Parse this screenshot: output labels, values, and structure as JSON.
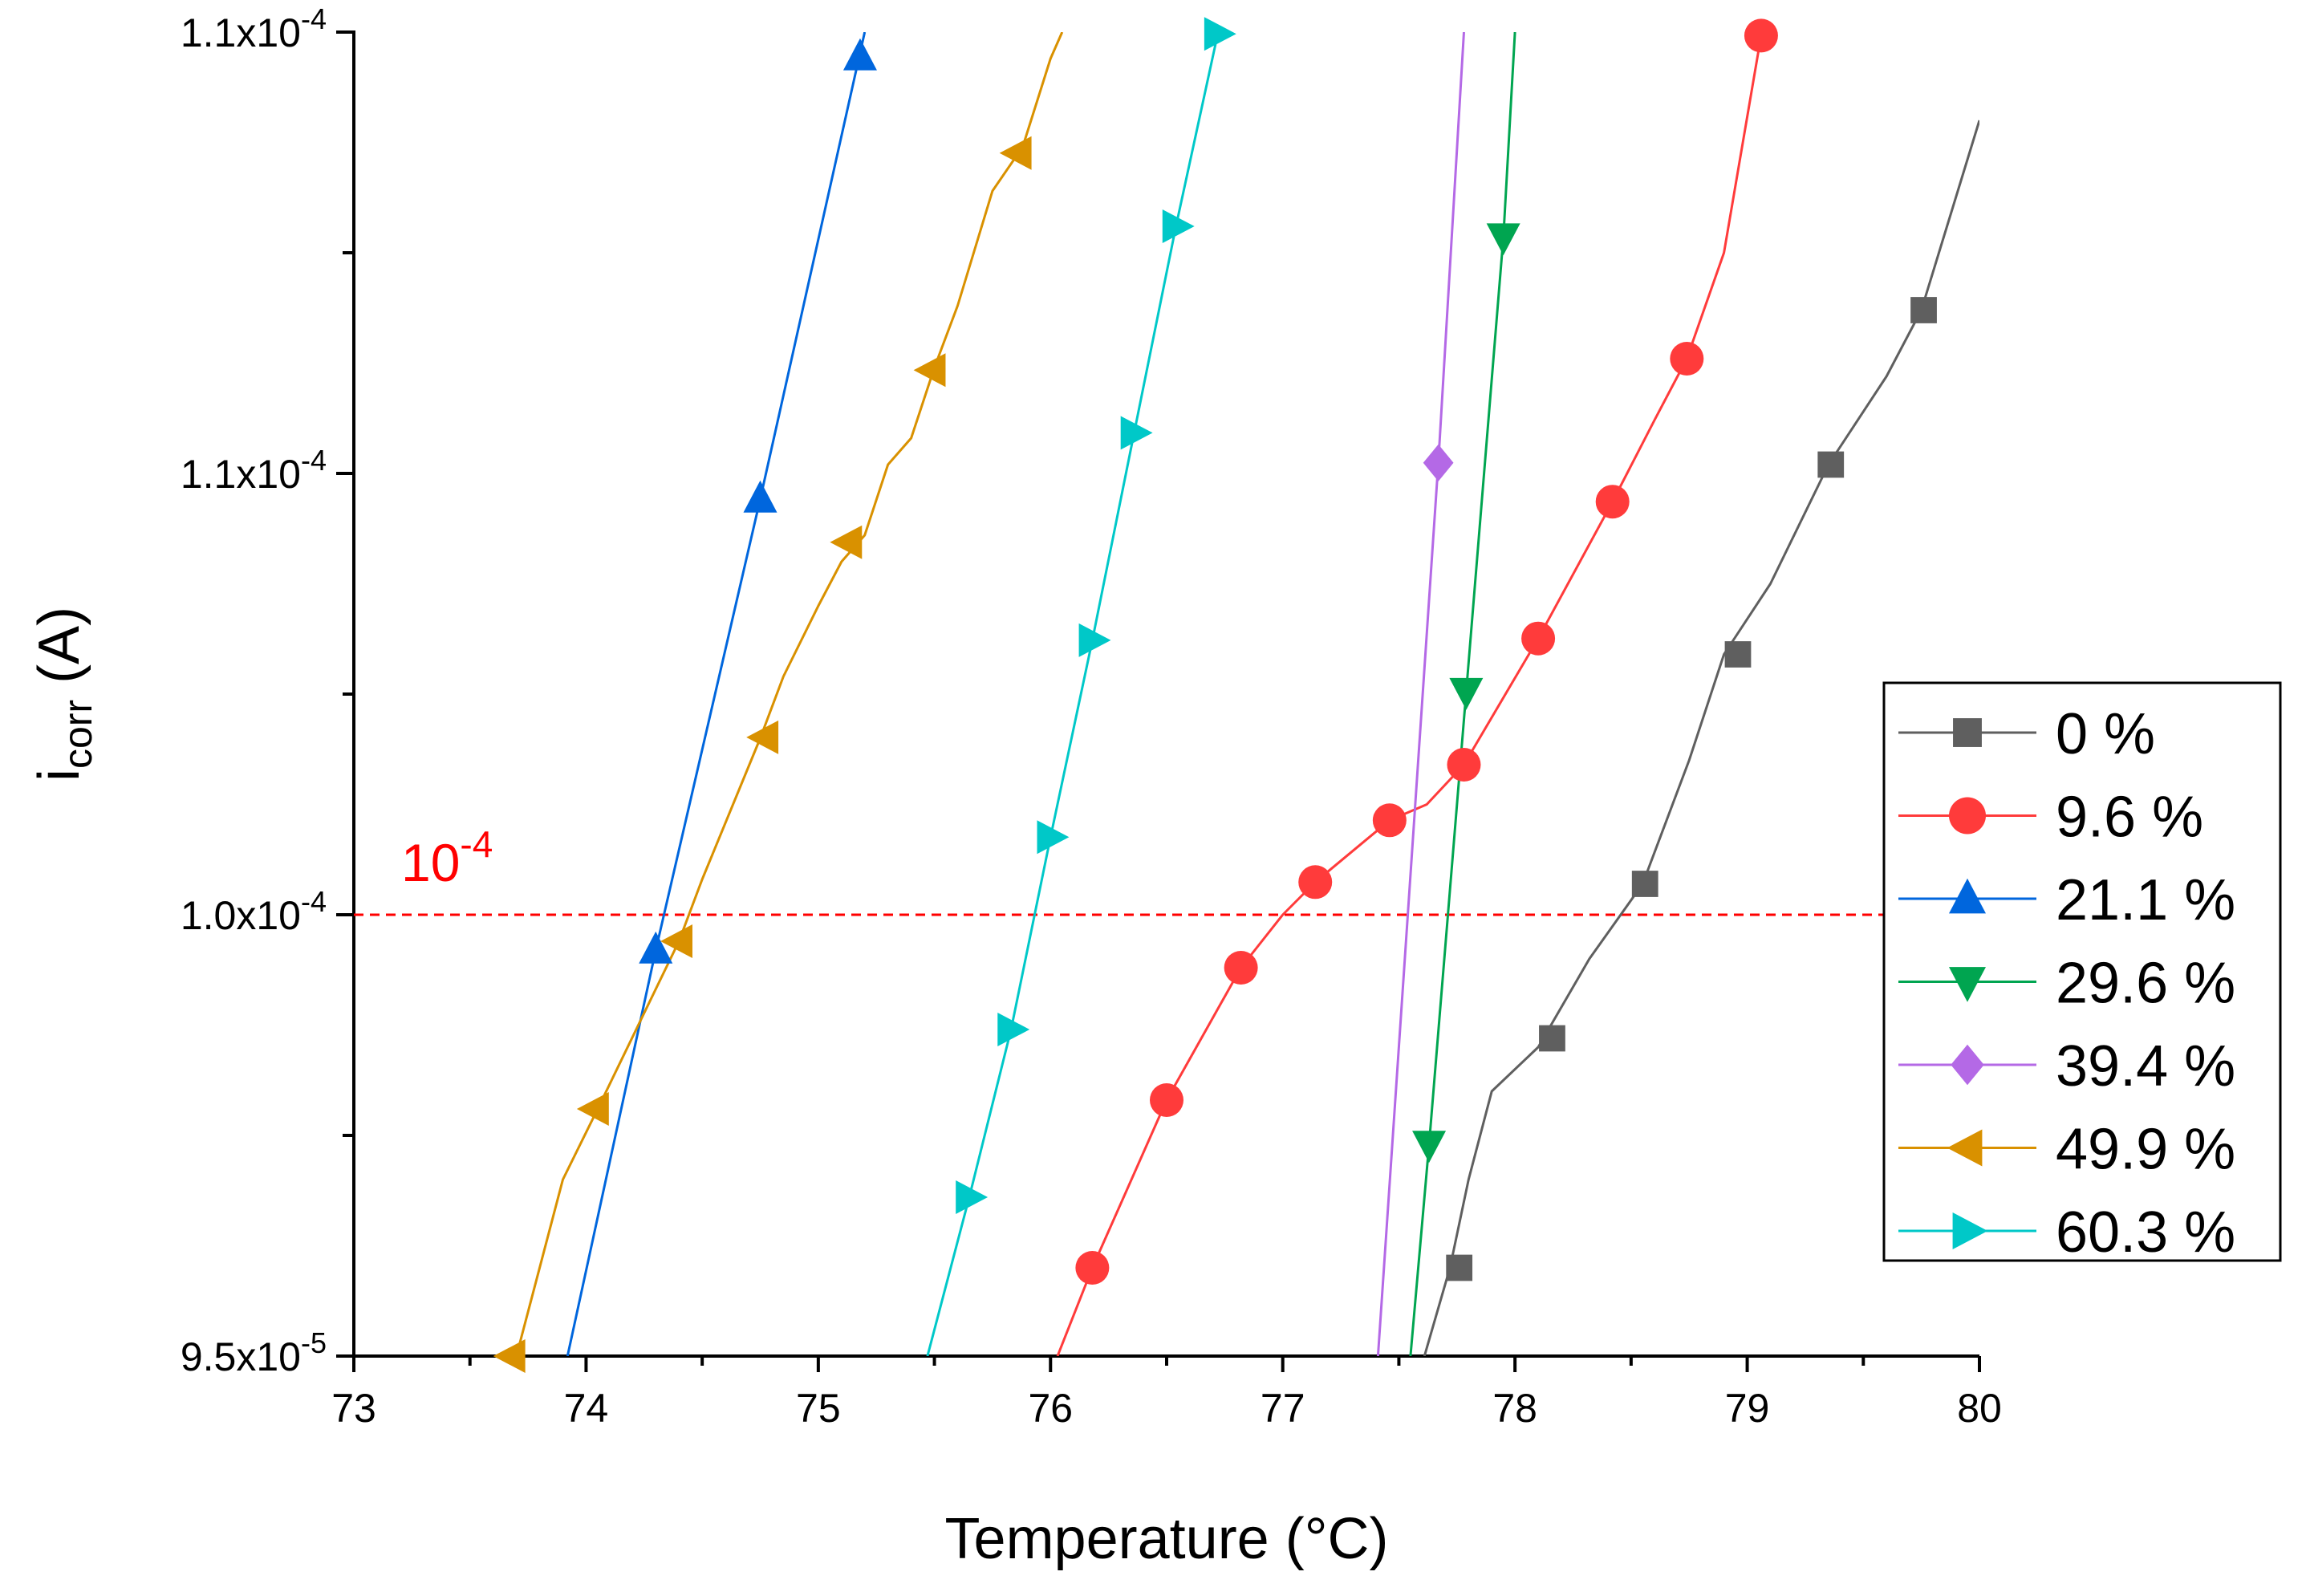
{
  "chart_data": {
    "type": "line",
    "title": "",
    "xlabel": "Temperature (°C)",
    "ylabel_main": "i",
    "ylabel_sub": "corr",
    "ylabel_unit": " (A)",
    "xlim": [
      73,
      80
    ],
    "ylim": [
      9.5e-05,
      0.00011
    ],
    "grid": false,
    "legend_position": "right",
    "x_ticks": [
      73,
      74,
      75,
      76,
      77,
      78,
      79,
      80
    ],
    "x_tick_labels": [
      "73",
      "74",
      "75",
      "76",
      "77",
      "78",
      "79",
      "80"
    ],
    "y_ticks": [
      {
        "value": 9.5e-05,
        "mantissa": "9.5x10",
        "exponent": "-5"
      },
      {
        "value": 0.0001,
        "mantissa": "1.0x10",
        "exponent": "-4"
      },
      {
        "value": 0.000105,
        "mantissa": "1.1x10",
        "exponent": "-4"
      },
      {
        "value": 0.00011,
        "mantissa": "1.1x10",
        "exponent": "-4"
      }
    ],
    "reference_line": {
      "y": 0.0001,
      "label_base": "10",
      "label_exponent": "-4",
      "color": "#ff0000",
      "style": "dashed"
    },
    "series": [
      {
        "name": "0 %",
        "color": "#5f5f5f",
        "marker": "square",
        "x": [
          77.61,
          77.72,
          77.8,
          77.9,
          78.1,
          78.32,
          78.55,
          78.75,
          78.9,
          79.1,
          79.35,
          79.6,
          79.75,
          80.0
        ],
        "y": [
          9.5e-05,
          9.6e-05,
          9.7e-05,
          9.8e-05,
          9.85e-05,
          9.95e-05,
          0.00010035,
          0.00010175,
          0.00010295,
          0.00010375,
          0.0001051,
          0.0001061,
          0.00010685,
          0.000109
        ],
        "marker_x": [
          77.76,
          78.16,
          78.56,
          78.96,
          79.36,
          79.76
        ],
        "marker_y": [
          9.6e-05,
          9.86e-05,
          0.00010035,
          0.00010295,
          0.0001051,
          0.00010685
        ]
      },
      {
        "name": "9.6 %",
        "color": "#ff3b3b",
        "marker": "circle",
        "x": [
          76.03,
          76.18,
          76.5,
          76.82,
          77.0,
          77.14,
          77.46,
          77.62,
          77.78,
          78.1,
          78.42,
          78.6,
          78.74,
          78.9,
          79.06
        ],
        "y": [
          9.5e-05,
          9.6e-05,
          9.79e-05,
          9.94e-05,
          0.0001,
          0.00010037,
          0.00010107,
          0.00010125,
          0.0001017,
          0.00010313,
          0.00010468,
          0.0001056,
          0.0001063,
          0.0001075,
          0.00010996
        ],
        "marker_x": [
          76.18,
          76.5,
          76.82,
          77.14,
          77.46,
          77.78,
          78.1,
          78.42,
          78.74,
          79.06
        ],
        "marker_y": [
          9.6e-05,
          9.79e-05,
          9.94e-05,
          0.00010037,
          0.00010107,
          0.0001017,
          0.00010313,
          0.00010468,
          0.0001063,
          0.00010996
        ]
      },
      {
        "name": "21.1 %",
        "color": "#0066dd",
        "marker": "triangle-up",
        "x": [
          73.92,
          74.3,
          74.75,
          75.2
        ],
        "y": [
          9.5e-05,
          9.96e-05,
          0.00010471,
          0.00011
        ],
        "marker_x": [
          74.3,
          74.75,
          75.18
        ],
        "marker_y": [
          9.96e-05,
          0.00010471,
          0.00010972
        ]
      },
      {
        "name": "29.6 %",
        "color": "#00a550",
        "marker": "triangle-down",
        "x": [
          77.55,
          77.63,
          77.79,
          77.95,
          78.0
        ],
        "y": [
          9.5e-05,
          9.74e-05,
          0.00010253,
          0.00010768,
          0.00011
        ],
        "marker_x": [
          77.63,
          77.79,
          77.95
        ],
        "marker_y": [
          9.74e-05,
          0.00010253,
          0.00010768
        ]
      },
      {
        "name": "39.4 %",
        "color": "#b469e6",
        "marker": "diamond",
        "x": [
          77.41,
          77.67,
          77.78
        ],
        "y": [
          9.5e-05,
          0.00010512,
          0.00011
        ],
        "marker_x": [
          77.67
        ],
        "marker_y": [
          0.00010512
        ]
      },
      {
        "name": "49.9 %",
        "color": "#d99100",
        "marker": "triangle-left",
        "x": [
          73.65,
          73.7,
          73.9,
          74.05,
          74.4,
          74.5,
          74.75,
          74.85,
          75.0,
          75.1,
          75.2,
          75.3,
          75.4,
          75.5,
          75.6,
          75.75,
          75.88,
          76.0,
          76.05
        ],
        "y": [
          9.5e-05,
          9.5e-05,
          9.7e-05,
          9.78e-05,
          9.97e-05,
          0.0001004,
          0.000102,
          0.0001027,
          0.0001035,
          0.000104,
          0.0001043,
          0.0001051,
          0.0001054,
          0.0001062,
          0.0001069,
          0.0001082,
          0.0001087,
          0.0001097,
          0.00011
        ],
        "marker_x": [
          73.68,
          74.04,
          74.4,
          74.77,
          75.13,
          75.49,
          75.86
        ],
        "marker_y": [
          9.5e-05,
          9.78e-05,
          9.97e-05,
          0.00010201,
          0.00010422,
          0.00010617,
          0.00010863
        ]
      },
      {
        "name": "60.3 %",
        "color": "#00c8c8",
        "marker": "triangle-right",
        "x": [
          75.47,
          75.65,
          75.83,
          76.0,
          76.18,
          76.36,
          76.54,
          76.72,
          76.75
        ],
        "y": [
          9.5e-05,
          9.68e-05,
          9.87e-05,
          0.00010088,
          0.00010311,
          0.00010546,
          0.0001078,
          0.00010998,
          0.00011
        ],
        "marker_x": [
          75.65,
          75.83,
          76.0,
          76.18,
          76.36,
          76.54,
          76.72
        ],
        "marker_y": [
          9.68e-05,
          9.87e-05,
          0.00010088,
          0.00010311,
          0.00010546,
          0.0001078,
          0.00010998
        ]
      }
    ]
  }
}
